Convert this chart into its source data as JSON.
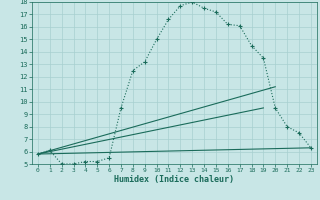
{
  "xlabel": "Humidex (Indice chaleur)",
  "bg_color": "#c8e6e6",
  "line_color": "#1a6b5a",
  "grid_color": "#a8d0d0",
  "xlim": [
    -0.5,
    23.5
  ],
  "ylim": [
    5,
    18
  ],
  "yticks": [
    5,
    6,
    7,
    8,
    9,
    10,
    11,
    12,
    13,
    14,
    15,
    16,
    17,
    18
  ],
  "xticks": [
    0,
    1,
    2,
    3,
    4,
    5,
    6,
    7,
    8,
    9,
    10,
    11,
    12,
    13,
    14,
    15,
    16,
    17,
    18,
    19,
    20,
    21,
    22,
    23
  ],
  "curve_x": [
    0,
    1,
    2,
    3,
    4,
    5,
    6,
    7,
    8,
    9,
    10,
    11,
    12,
    13,
    14,
    15,
    16,
    17,
    18,
    19,
    20,
    21,
    22,
    23
  ],
  "curve_y": [
    5.8,
    6.1,
    5.0,
    5.0,
    5.2,
    5.2,
    5.5,
    9.5,
    12.5,
    13.2,
    15.0,
    16.6,
    17.7,
    18.0,
    17.5,
    17.2,
    16.2,
    16.1,
    14.5,
    13.5,
    9.5,
    8.0,
    7.5,
    6.3
  ],
  "line2_x": [
    0,
    19
  ],
  "line2_y": [
    5.8,
    9.5
  ],
  "line3_x": [
    0,
    20
  ],
  "line3_y": [
    5.8,
    11.2
  ],
  "line4_x": [
    0,
    23
  ],
  "line4_y": [
    5.8,
    6.3
  ]
}
